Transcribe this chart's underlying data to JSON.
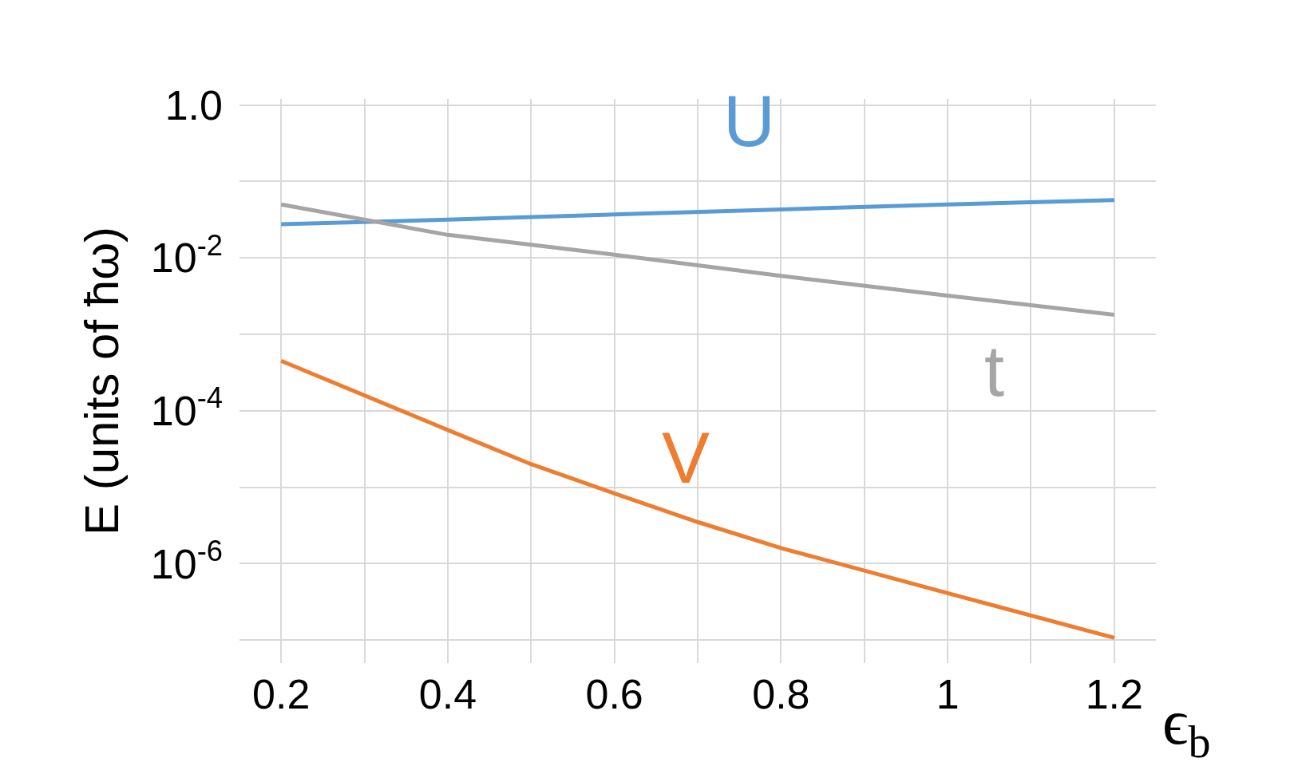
{
  "chart_data": {
    "type": "line",
    "xlabel": "ϵ$_{b}$",
    "ylabel": "E (units of ħω)",
    "log": "y",
    "grid": true,
    "legend": false,
    "marker": "none",
    "line_style": "solid",
    "xlim": [
      0.15,
      1.25
    ],
    "xticks": [
      {
        "value": 0.2,
        "label": "0.2"
      },
      {
        "value": 0.3,
        "label": null
      },
      {
        "value": 0.4,
        "label": "0.4"
      },
      {
        "value": 0.5,
        "label": null
      },
      {
        "value": 0.6,
        "label": "0.6"
      },
      {
        "value": 0.7,
        "label": null
      },
      {
        "value": 0.8,
        "label": "0.8"
      },
      {
        "value": 0.9,
        "label": null
      },
      {
        "value": 1,
        "label": "1"
      },
      {
        "value": 1.1,
        "label": null
      },
      {
        "value": 1.2,
        "label": "1.2"
      }
    ],
    "ylim": [
      5e-08,
      1.2
    ],
    "yticks": [
      {
        "value": 1,
        "label": "1.0"
      },
      {
        "value": 0.1,
        "label": null
      },
      {
        "value": 0.01,
        "label": "10$^{-2}$"
      },
      {
        "value": 0.001,
        "label": null
      },
      {
        "value": 0.0001,
        "label": "10$^{-4}$"
      },
      {
        "value": 1e-05,
        "label": null
      },
      {
        "value": 1e-06,
        "label": "10$^{-6}$"
      },
      {
        "value": 1e-07,
        "label": null
      }
    ],
    "series": [
      {
        "name": "U",
        "color": "#5b9bd5",
        "x": [
          0.2,
          0.4,
          0.6,
          0.8,
          1.0,
          1.2
        ],
        "values": [
          0.0275,
          0.0316,
          0.037,
          0.043,
          0.05,
          0.057
        ]
      },
      {
        "name": "t",
        "color": "#a5a5a5",
        "x": [
          0.2,
          0.4,
          0.6,
          0.8,
          1.0,
          1.2
        ],
        "values": [
          0.05,
          0.02,
          0.011,
          0.0058,
          0.0032,
          0.0018
        ]
      },
      {
        "name": "V",
        "color": "#ed7d31",
        "x": [
          0.2,
          0.4,
          0.5,
          0.6,
          0.7,
          0.8,
          1.0,
          1.2
        ],
        "values": [
          0.00045,
          5.6e-05,
          2e-05,
          8.3e-06,
          3.5e-06,
          1.6e-06,
          4.1e-07,
          1.07e-07
        ]
      }
    ]
  }
}
